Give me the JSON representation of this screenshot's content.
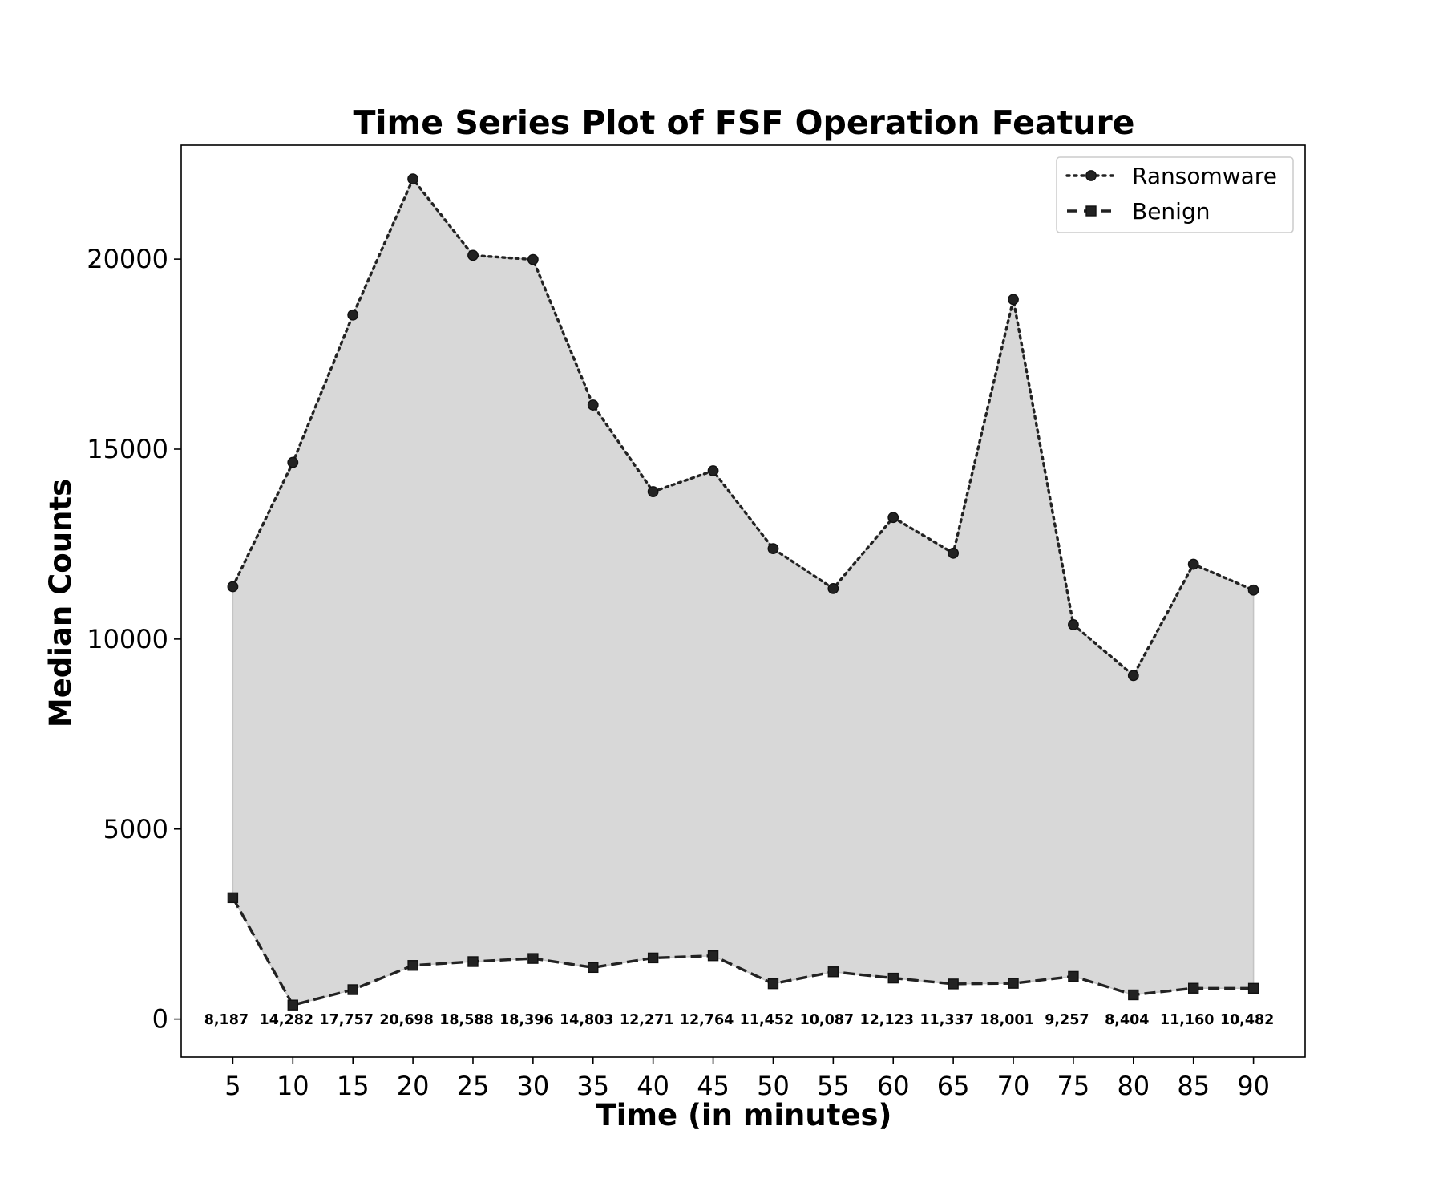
{
  "chart_data": {
    "type": "line",
    "title": "Time Series Plot of FSF Operation Feature",
    "xlabel": "Time (in minutes)",
    "ylabel": "Median Counts",
    "x": [
      5,
      10,
      15,
      20,
      25,
      30,
      35,
      40,
      45,
      50,
      55,
      60,
      65,
      70,
      75,
      80,
      85,
      90
    ],
    "xticks": [
      "5",
      "10",
      "15",
      "20",
      "25",
      "30",
      "35",
      "40",
      "45",
      "50",
      "55",
      "60",
      "65",
      "70",
      "75",
      "80",
      "85",
      "90"
    ],
    "yticks": [
      "0",
      "5000",
      "10000",
      "15000",
      "20000"
    ],
    "ylim": [
      -1000,
      23000
    ],
    "xlim": [
      0.7,
      94.3
    ],
    "series": [
      {
        "name": "Ransomware",
        "marker": "circle",
        "linestyle": "dotted",
        "values": [
          11380,
          14650,
          18530,
          22110,
          20100,
          19990,
          16160,
          13880,
          14430,
          12380,
          11330,
          13200,
          12260,
          18940,
          10380,
          9040,
          11970,
          11290
        ]
      },
      {
        "name": "Benign",
        "marker": "square",
        "linestyle": "dashed",
        "values": [
          3193,
          368,
          773,
          1412,
          1512,
          1594,
          1357,
          1609,
          1666,
          928,
          1243,
          1077,
          923,
          939,
          1123,
          636,
          810,
          808
        ]
      }
    ],
    "difference_labels": [
      "8,187",
      "14,282",
      "17,757",
      "20,698",
      "18,588",
      "18,396",
      "14,803",
      "12,271",
      "12,764",
      "11,452",
      "10,087",
      "12,123",
      "11,337",
      "18,001",
      "9,257",
      "8,404",
      "11,160",
      "10,482"
    ],
    "fill_between": true,
    "fill_color": "#d8d8d8",
    "line_color": "#222222",
    "grid": false,
    "legend": "top-right"
  }
}
